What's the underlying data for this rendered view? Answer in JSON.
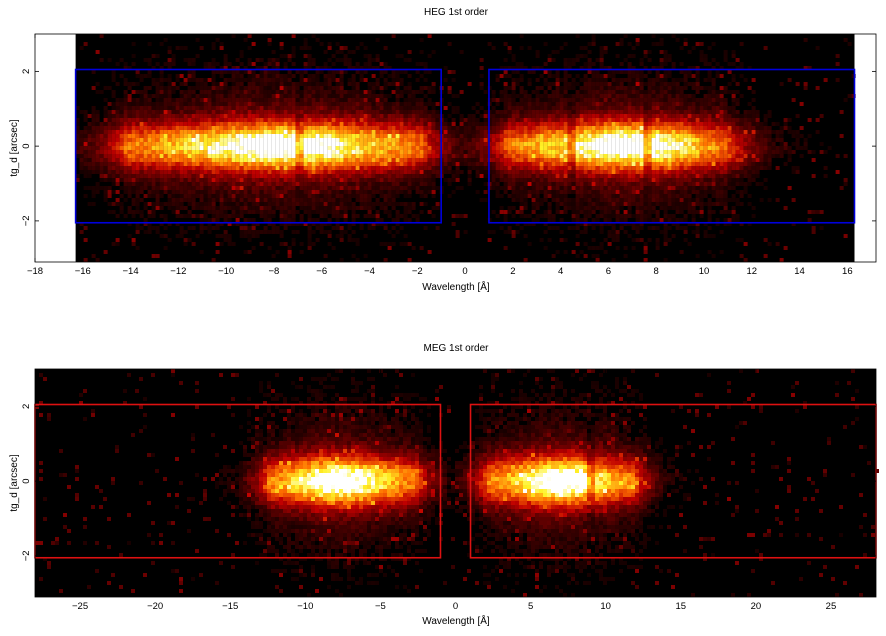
{
  "chart_data": [
    {
      "type": "heatmap",
      "title": "HEG 1st order",
      "xlabel": "Wavelength [Å]",
      "ylabel": "tg_d [arcsec]",
      "xlim": [
        -18,
        17.2
      ],
      "ylim": [
        -3.1,
        3
      ],
      "data_xlim": [
        -16.3,
        16.3
      ],
      "x_ticks": [
        -18,
        -16,
        -14,
        -12,
        -10,
        -8,
        -6,
        -4,
        -2,
        0,
        2,
        4,
        6,
        8,
        10,
        12,
        14,
        16
      ],
      "x_tick_labels": [
        "−18",
        "−16",
        "−14",
        "−12",
        "−10",
        "−8",
        "−6",
        "−4",
        "−2",
        "0",
        "2",
        "4",
        "6",
        "8",
        "10",
        "12",
        "14",
        "16"
      ],
      "y_ticks": [
        -2,
        0,
        2
      ],
      "y_tick_labels": [
        "−2",
        "0",
        "2"
      ],
      "colormap": "black-red-orange-yellow-white",
      "box_color": "#0000dd",
      "extraction_boxes": [
        {
          "x": [
            -16.3,
            -1.0
          ],
          "y": [
            -2.05,
            2.05
          ]
        },
        {
          "x": [
            1.0,
            16.3
          ],
          "y": [
            -2.05,
            2.05
          ]
        }
      ],
      "intensity_features": [
        {
          "x_range": [
            -14.3,
            -1.8
          ],
          "peak_x": -7.5,
          "peak_intensity": 1.0
        },
        {
          "x_range": [
            1.8,
            11.0
          ],
          "peak_x": 7.0,
          "peak_intensity": 1.0
        },
        {
          "x_center": -7.0,
          "type": "absorption-edge"
        },
        {
          "x_center": 4.5,
          "type": "absorption-edge"
        },
        {
          "x_center": 7.6,
          "type": "absorption-edge"
        }
      ]
    },
    {
      "type": "heatmap",
      "title": "MEG 1st order",
      "xlabel": "Wavelength [Å]",
      "ylabel": "tg_d [arcsec]",
      "xlim": [
        -28,
        28
      ],
      "ylim": [
        -3.1,
        3
      ],
      "data_xlim": [
        -28,
        28
      ],
      "x_ticks": [
        -25,
        -20,
        -15,
        -10,
        -5,
        0,
        5,
        10,
        15,
        20,
        25
      ],
      "x_tick_labels": [
        "−25",
        "−20",
        "−15",
        "−10",
        "−5",
        "0",
        "5",
        "10",
        "15",
        "20",
        "25"
      ],
      "y_ticks": [
        -2,
        0,
        2
      ],
      "y_tick_labels": [
        "−2",
        "0",
        "2"
      ],
      "colormap": "black-red-orange-yellow-white",
      "box_color": "#dd1111",
      "extraction_boxes": [
        {
          "x": [
            -28,
            -1.0
          ],
          "y": [
            -2.05,
            2.05
          ]
        },
        {
          "x": [
            1.0,
            28
          ],
          "y": [
            -2.05,
            2.05
          ]
        }
      ],
      "intensity_features": [
        {
          "x_range": [
            -12.5,
            -2.5
          ],
          "peak_x": -8.0,
          "peak_intensity": 1.0
        },
        {
          "x_range": [
            2.0,
            12.0
          ],
          "peak_x": 7.0,
          "peak_intensity": 1.0
        },
        {
          "x_center": 9.0,
          "type": "absorption-edge"
        }
      ]
    }
  ]
}
